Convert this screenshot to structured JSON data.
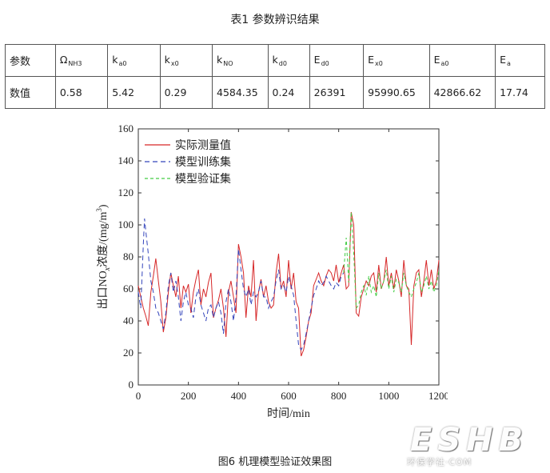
{
  "table": {
    "title": "表1  参数辨识结果",
    "header_label": "参数",
    "row_label": "数值",
    "params": [
      {
        "base": "Ω",
        "sub": "NH3",
        "value": "0.58"
      },
      {
        "base": "k",
        "sub": "a0",
        "value": "5.42"
      },
      {
        "base": "k",
        "sub": "x0",
        "value": "0.29"
      },
      {
        "base": "k",
        "sub": "NO",
        "value": "4584.35"
      },
      {
        "base": "k",
        "sub": "d0",
        "value": "0.24"
      },
      {
        "base": "E",
        "sub": "d0",
        "value": "26391"
      },
      {
        "base": "E",
        "sub": "x0",
        "value": "95990.65"
      },
      {
        "base": "E",
        "sub": "a0",
        "value": "42866.62"
      },
      {
        "base": "E",
        "sub": "a",
        "value": "17.74"
      }
    ]
  },
  "caption": "图6  机理模型验证效果图",
  "watermark": {
    "big": "ESHB",
    "small": "环保学社·COM"
  },
  "chart_data": {
    "type": "line",
    "xlabel": "时间/min",
    "ylabel": "出口NOx浓度/(mg/m3)",
    "ylabel_parts": {
      "pre": "出口NO",
      "italic_sub": "x",
      "mid": "浓度/(mg/m",
      "sup": "3",
      "post": ")"
    },
    "xlim": [
      0,
      1200
    ],
    "ylim": [
      0,
      160
    ],
    "xticks": [
      0,
      200,
      400,
      600,
      800,
      1000,
      1200
    ],
    "yticks": [
      0,
      20,
      40,
      60,
      80,
      100,
      120,
      140,
      160
    ],
    "grid": false,
    "legend_position": "top-left",
    "series": [
      {
        "name": "实际测量值",
        "color": "#d62728",
        "dash": "solid",
        "x": [
          0,
          10,
          20,
          30,
          40,
          50,
          60,
          70,
          80,
          90,
          100,
          110,
          120,
          130,
          140,
          150,
          160,
          170,
          180,
          190,
          200,
          210,
          220,
          230,
          240,
          250,
          260,
          270,
          280,
          290,
          300,
          310,
          320,
          330,
          340,
          350,
          360,
          370,
          380,
          390,
          400,
          410,
          420,
          430,
          440,
          450,
          460,
          470,
          480,
          490,
          500,
          510,
          520,
          530,
          540,
          550,
          560,
          570,
          580,
          590,
          600,
          610,
          620,
          630,
          640,
          650,
          660,
          670,
          680,
          690,
          700,
          710,
          720,
          730,
          740,
          750,
          760,
          770,
          780,
          790,
          800,
          810,
          820,
          830,
          840,
          850,
          860,
          870,
          880,
          890,
          900,
          910,
          920,
          930,
          940,
          950,
          960,
          970,
          980,
          990,
          1000,
          1010,
          1020,
          1030,
          1040,
          1050,
          1060,
          1070,
          1080,
          1090,
          1100,
          1110,
          1120,
          1130,
          1140,
          1150,
          1160,
          1170,
          1180,
          1190,
          1200
        ],
        "y": [
          62,
          55,
          48,
          43,
          37,
          58,
          68,
          79,
          65,
          52,
          33,
          42,
          58,
          70,
          62,
          55,
          68,
          48,
          62,
          58,
          63,
          45,
          58,
          66,
          72,
          50,
          60,
          55,
          64,
          70,
          42,
          48,
          53,
          60,
          48,
          30,
          58,
          65,
          55,
          45,
          88,
          80,
          70,
          42,
          62,
          55,
          78,
          40,
          58,
          66,
          55,
          62,
          52,
          48,
          50,
          70,
          82,
          60,
          65,
          55,
          78,
          60,
          70,
          52,
          48,
          18,
          22,
          30,
          40,
          45,
          62,
          66,
          70,
          65,
          62,
          68,
          72,
          70,
          65,
          75,
          64,
          70,
          75,
          60,
          62,
          108,
          100,
          45,
          43,
          55,
          60,
          65,
          62,
          68,
          70,
          58,
          75,
          60,
          65,
          80,
          62,
          70,
          60,
          72,
          65,
          55,
          78,
          62,
          60,
          25,
          62,
          70,
          72,
          55,
          65,
          78,
          62,
          72,
          60,
          65,
          78
        ]
      },
      {
        "name": "模型训练集",
        "color": "#3344bb",
        "dash": "6,4",
        "x": [
          0,
          10,
          20,
          25,
          30,
          40,
          50,
          60,
          70,
          80,
          90,
          100,
          110,
          120,
          130,
          140,
          150,
          160,
          170,
          180,
          190,
          200,
          210,
          220,
          230,
          240,
          250,
          260,
          270,
          280,
          290,
          300,
          310,
          320,
          330,
          340,
          350,
          360,
          370,
          380,
          390,
          400,
          410,
          420,
          430,
          440,
          450,
          460,
          470,
          480,
          490,
          500,
          510,
          520,
          530,
          540,
          550,
          560,
          570,
          580,
          590,
          600,
          610,
          620,
          630,
          640,
          650,
          660,
          670,
          680,
          690,
          700,
          710,
          720,
          730,
          740,
          750,
          760,
          770,
          780,
          790,
          800,
          810,
          820
        ],
        "y": [
          58,
          48,
          88,
          104,
          96,
          82,
          65,
          58,
          48,
          45,
          40,
          35,
          45,
          62,
          70,
          58,
          65,
          55,
          40,
          52,
          58,
          50,
          48,
          42,
          55,
          60,
          50,
          45,
          40,
          48,
          50,
          42,
          48,
          52,
          45,
          32,
          52,
          60,
          52,
          40,
          55,
          85,
          72,
          60,
          55,
          60,
          50,
          58,
          55,
          58,
          65,
          55,
          55,
          48,
          52,
          55,
          65,
          72,
          60,
          62,
          58,
          68,
          62,
          56,
          40,
          25,
          22,
          25,
          32,
          40,
          48,
          56,
          60,
          65,
          62,
          64,
          68,
          65,
          62,
          60,
          64,
          62,
          68,
          70
        ]
      },
      {
        "name": "模型验证集",
        "color": "#44cc44",
        "dash": "4,3",
        "x": [
          820,
          830,
          840,
          850,
          860,
          870,
          880,
          890,
          900,
          910,
          920,
          930,
          940,
          950,
          960,
          970,
          980,
          990,
          1000,
          1010,
          1020,
          1030,
          1040,
          1050,
          1060,
          1070,
          1080,
          1090,
          1100,
          1110,
          1120,
          1130,
          1140,
          1150,
          1160,
          1170,
          1180,
          1190,
          1200
        ],
        "y": [
          70,
          92,
          64,
          108,
          82,
          48,
          50,
          58,
          62,
          56,
          68,
          58,
          62,
          55,
          70,
          60,
          65,
          72,
          60,
          68,
          58,
          66,
          64,
          58,
          70,
          62,
          58,
          55,
          60,
          64,
          70,
          58,
          62,
          68,
          60,
          65,
          58,
          62,
          72
        ]
      }
    ]
  }
}
